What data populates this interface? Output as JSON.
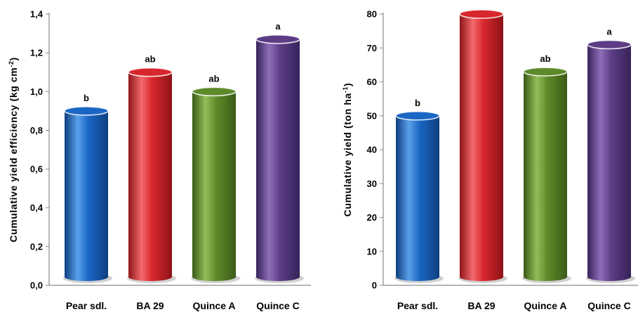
{
  "chart_data": [
    {
      "type": "bar",
      "ylabel": "Cumulative yield efficiency (kg cm",
      "ylabel_sup": "-2",
      "ylabel_close": ")",
      "categories": [
        "Pear sdl.",
        "BA 29",
        "Quince A",
        "Quince C"
      ],
      "values": [
        0.9,
        1.1,
        1.0,
        1.27
      ],
      "significance": [
        "b",
        "ab",
        "ab",
        "a"
      ],
      "ylim": [
        0,
        1.4
      ],
      "yticks": [
        "0,0",
        "0,2",
        "0,4",
        "0,6",
        "0,8",
        "1,0",
        "1,2",
        "1,4"
      ],
      "grid": false
    },
    {
      "type": "bar",
      "ylabel": "Cumulative yield (ton ha",
      "ylabel_sup": "-1",
      "ylabel_close": ")",
      "categories": [
        "Pear sdl.",
        "BA 29",
        "Quince A",
        "Quince C"
      ],
      "values": [
        50,
        80,
        63,
        71
      ],
      "significance": [
        "b",
        "",
        "ab",
        "a"
      ],
      "ylim": [
        0,
        80
      ],
      "yticks": [
        "0",
        "10",
        "20",
        "30",
        "40",
        "50",
        "60",
        "70",
        "80"
      ],
      "grid": false
    }
  ],
  "colors": {
    "bars": [
      "#1a66c4",
      "#d7262c",
      "#5e8a2a",
      "#5c3d85"
    ],
    "bars_light": [
      "#5aa0ea",
      "#f26b6e",
      "#93bd58",
      "#8e6eb8"
    ],
    "bars_dark": [
      "#0d3f80",
      "#8e1418",
      "#3a5a16",
      "#37225a"
    ]
  }
}
